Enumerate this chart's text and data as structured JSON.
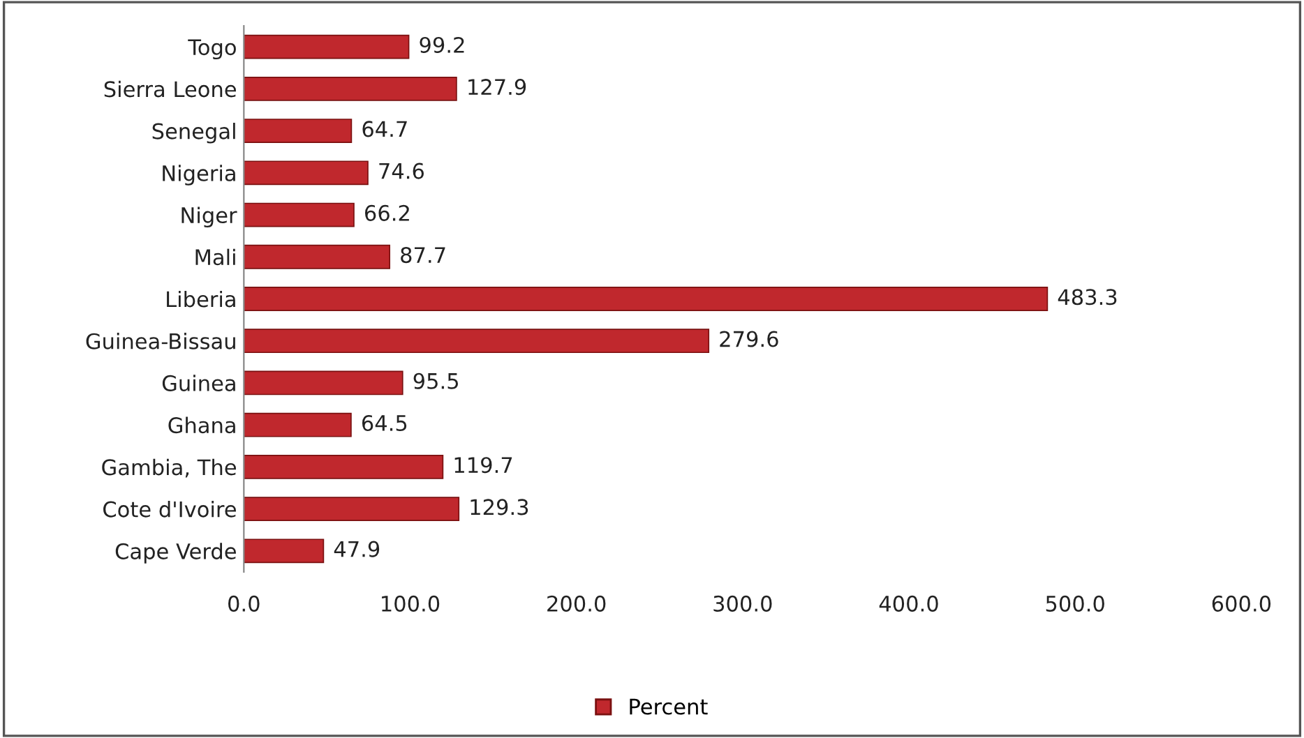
{
  "chart_data": {
    "type": "bar",
    "orientation": "horizontal",
    "categories": [
      "Togo",
      "Sierra Leone",
      "Senegal",
      "Nigeria",
      "Niger",
      "Mali",
      "Liberia",
      "Guinea-Bissau",
      "Guinea",
      "Ghana",
      "Gambia, The",
      "Cote d'Ivoire",
      "Cape Verde"
    ],
    "series": [
      {
        "name": "Percent",
        "color": "#c0282d",
        "values": [
          99.2,
          127.9,
          64.7,
          74.6,
          66.2,
          87.7,
          483.3,
          279.6,
          95.5,
          64.5,
          119.7,
          129.3,
          47.9
        ]
      }
    ],
    "xlim": [
      0,
      600
    ],
    "xticks": [
      {
        "value": 0,
        "label": "0.0"
      },
      {
        "value": 100,
        "label": "100.0"
      },
      {
        "value": 200,
        "label": "200.0"
      },
      {
        "value": 300,
        "label": "300.0"
      },
      {
        "value": 400,
        "label": "400.0"
      },
      {
        "value": 500,
        "label": "500.0"
      },
      {
        "value": 600,
        "label": "600.0"
      }
    ],
    "data_labels": true,
    "grid": false,
    "legend": "bottom"
  }
}
